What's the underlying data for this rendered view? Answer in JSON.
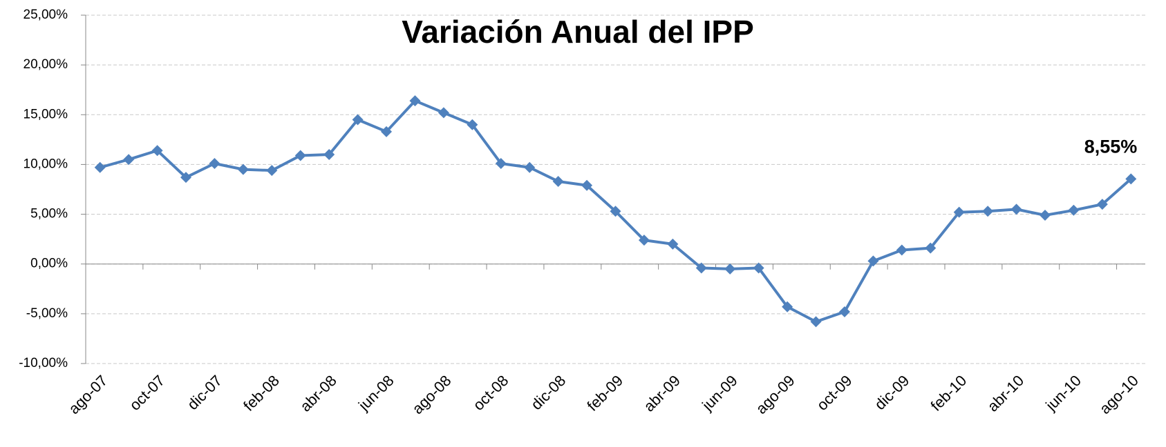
{
  "chart_data": {
    "type": "line",
    "title": "Variación Anual del IPP",
    "categories": [
      "ago-07",
      null,
      "oct-07",
      null,
      "dic-07",
      null,
      "feb-08",
      null,
      "abr-08",
      null,
      "jun-08",
      null,
      "ago-08",
      null,
      "oct-08",
      null,
      "dic-08",
      null,
      "feb-09",
      null,
      "abr-09",
      null,
      "jun-09",
      null,
      "ago-09",
      null,
      "oct-09",
      null,
      "dic-09",
      null,
      "feb-10",
      null,
      "abr-10",
      null,
      "jun-10",
      null,
      "ago-10"
    ],
    "series": [
      {
        "color": "#4f81bd",
        "values": [
          9.7,
          10.5,
          11.4,
          8.7,
          10.1,
          9.5,
          9.4,
          10.9,
          11.0,
          14.5,
          13.3,
          16.4,
          15.2,
          14.0,
          10.1,
          9.7,
          8.3,
          7.9,
          5.3,
          2.4,
          2.0,
          -0.4,
          -0.5,
          -0.4,
          -4.3,
          -5.8,
          -4.8,
          0.3,
          1.4,
          1.6,
          5.2,
          5.3,
          5.5,
          4.9,
          5.4,
          6.0,
          8.55
        ],
        "value_labels": [
          null,
          null,
          null,
          null,
          null,
          null,
          null,
          null,
          null,
          null,
          null,
          null,
          null,
          null,
          null,
          null,
          null,
          null,
          null,
          null,
          null,
          null,
          null,
          null,
          null,
          null,
          null,
          null,
          null,
          null,
          null,
          null,
          null,
          null,
          null,
          null,
          "8,55%"
        ]
      }
    ],
    "ylim": [
      -10,
      25
    ],
    "yticks": [
      {
        "value": -10,
        "label": "-10,00%"
      },
      {
        "value": -5,
        "label": "-5,00%"
      },
      {
        "value": 0,
        "label": "0,00%"
      },
      {
        "value": 5,
        "label": "5,00%"
      },
      {
        "value": 10,
        "label": "10,00%"
      },
      {
        "value": 15,
        "label": "15,00%"
      },
      {
        "value": 20,
        "label": "20,00%"
      },
      {
        "value": 25,
        "label": "25,00%"
      }
    ],
    "grid": true
  }
}
